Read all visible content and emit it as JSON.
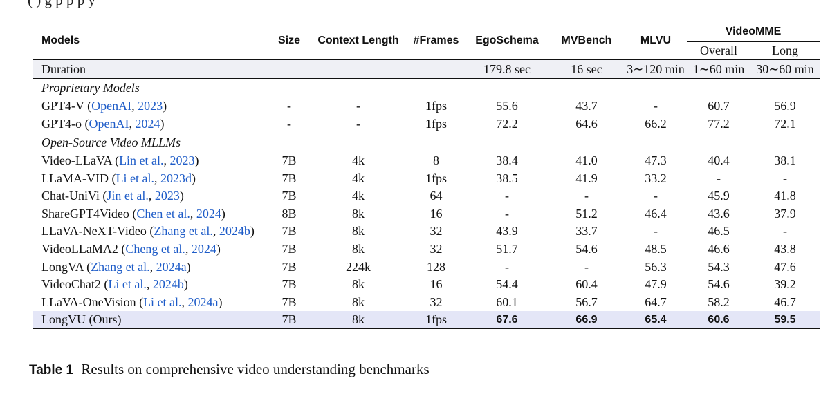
{
  "top_fragment": "(           )                                         g                    p                     p p      y",
  "header": {
    "models": "Models",
    "size": "Size",
    "context": "Context Length",
    "frames": "#Frames",
    "ego": "EgoSchema",
    "mvbench": "MVBench",
    "mlvu": "MLVU",
    "videomme": "VideoMME",
    "overall": "Overall",
    "long": "Long"
  },
  "duration": {
    "label": "Duration",
    "ego": "179.8 sec",
    "mvbench": "16 sec",
    "mlvu": "3∼120 min",
    "overall": "1∼60 min",
    "long": "30∼60 min"
  },
  "sections": {
    "proprietary": "Proprietary Models",
    "open": "Open-Source Video MLLMs"
  },
  "proprietary_rows": [
    {
      "name": "GPT4-V (",
      "cite": "OpenAI",
      "sep": ", ",
      "year": "2023",
      "close": ")",
      "size": "-",
      "context": "-",
      "frames": "1fps",
      "ego": "55.6",
      "mvbench": "43.7",
      "mlvu": "-",
      "overall": "60.7",
      "long": "56.9"
    },
    {
      "name": "GPT4-o (",
      "cite": "OpenAI",
      "sep": ", ",
      "year": "2024",
      "close": ")",
      "size": "-",
      "context": "-",
      "frames": "1fps",
      "ego": "72.2",
      "mvbench": "64.6",
      "mlvu": "66.2",
      "overall": "77.2",
      "long": "72.1"
    }
  ],
  "open_rows": [
    {
      "name": "Video-LLaVA (",
      "cite": "Lin et al.",
      "sep": ", ",
      "year": "2023",
      "close": ")",
      "size": "7B",
      "context": "4k",
      "frames": "8",
      "ego": "38.4",
      "mvbench": "41.0",
      "mlvu": "47.3",
      "overall": "40.4",
      "long": "38.1"
    },
    {
      "name": "LLaMA-VID (",
      "cite": "Li et al.",
      "sep": ", ",
      "year": "2023d",
      "close": ")",
      "size": "7B",
      "context": "4k",
      "frames": "1fps",
      "ego": "38.5",
      "mvbench": "41.9",
      "mlvu": "33.2",
      "overall": "-",
      "long": "-"
    },
    {
      "name": "Chat-UniVi (",
      "cite": "Jin et al.",
      "sep": ", ",
      "year": "2023",
      "close": ")",
      "size": "7B",
      "context": "4k",
      "frames": "64",
      "ego": "-",
      "mvbench": "-",
      "mlvu": "-",
      "overall": "45.9",
      "long": "41.8"
    },
    {
      "name": "ShareGPT4Video (",
      "cite": "Chen et al.",
      "sep": ", ",
      "year": "2024",
      "close": ")",
      "size": "8B",
      "context": "8k",
      "frames": "16",
      "ego": "-",
      "mvbench": "51.2",
      "mlvu": "46.4",
      "overall": "43.6",
      "long": "37.9"
    },
    {
      "name": "LLaVA-NeXT-Video (",
      "cite": "Zhang et al.",
      "sep": ", ",
      "year": "2024b",
      "close": ")",
      "size": "7B",
      "context": "8k",
      "frames": "32",
      "ego": "43.9",
      "mvbench": "33.7",
      "mlvu": "-",
      "overall": "46.5",
      "long": "-"
    },
    {
      "name": "VideoLLaMA2 (",
      "cite": "Cheng et al.",
      "sep": ", ",
      "year": "2024",
      "close": ")",
      "size": "7B",
      "context": "8k",
      "frames": "32",
      "ego": "51.7",
      "mvbench": "54.6",
      "mlvu": "48.5",
      "overall": "46.6",
      "long": "43.8"
    },
    {
      "name": "LongVA (",
      "cite": "Zhang et al.",
      "sep": ", ",
      "year": "2024a",
      "close": ")",
      "size": "7B",
      "context": "224k",
      "frames": "128",
      "ego": "-",
      "mvbench": "-",
      "mlvu": "56.3",
      "overall": "54.3",
      "long": "47.6"
    },
    {
      "name": "VideoChat2 (",
      "cite": "Li et al.",
      "sep": ", ",
      "year": "2024b",
      "close": ")",
      "size": "7B",
      "context": "8k",
      "frames": "16",
      "ego": "54.4",
      "mvbench": "60.4",
      "mlvu": "47.9",
      "overall": "54.6",
      "long": "39.2"
    },
    {
      "name": "LLaVA-OneVision (",
      "cite": "Li et al.",
      "sep": ", ",
      "year": "2024a",
      "close": ")",
      "size": "7B",
      "context": "8k",
      "frames": "32",
      "ego": "60.1",
      "mvbench": "56.7",
      "mlvu": "64.7",
      "overall": "58.2",
      "long": "46.7"
    }
  ],
  "ours_row": {
    "name": "LongVU (Ours)",
    "size": "7B",
    "context": "8k",
    "frames": "1fps",
    "ego": "67.6",
    "mvbench": "66.9",
    "mlvu": "65.4",
    "overall": "60.6",
    "long": "59.5"
  },
  "caption": {
    "label": "Table 1",
    "text": "Results on comprehensive video understanding benchmarks"
  },
  "colors": {
    "link": "#1e5cc8",
    "highlight": "#e4e6f7",
    "duration_bg": "#eff0f5"
  }
}
